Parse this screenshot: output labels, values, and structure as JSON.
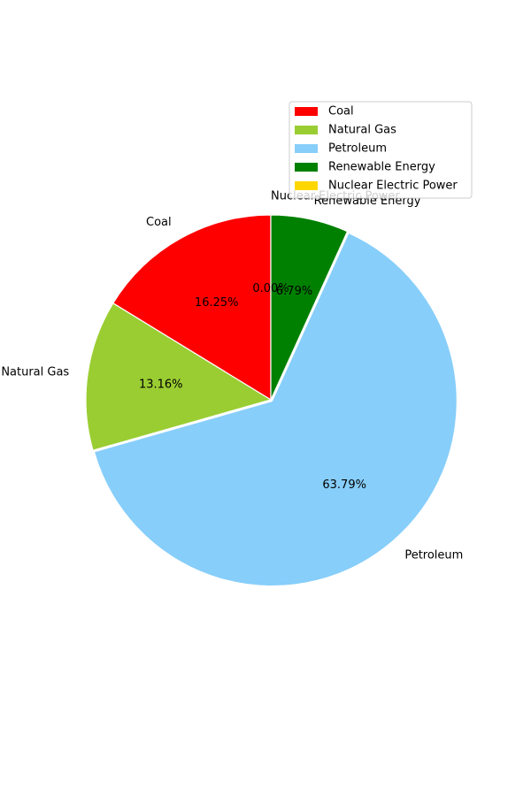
{
  "chart_data": {
    "type": "pie",
    "title": "",
    "legend_position": "top-right",
    "start_angle_deg": 90,
    "direction": "counterclockwise",
    "explode": [
      0,
      0,
      0.01,
      0,
      0
    ],
    "slices": [
      {
        "label": "Coal",
        "value": 16.25,
        "pct_label": "16.25%",
        "color": "#FF0000"
      },
      {
        "label": "Natural Gas",
        "value": 13.16,
        "pct_label": "13.16%",
        "color": "#9ACD32"
      },
      {
        "label": "Petroleum",
        "value": 63.79,
        "pct_label": "63.79%",
        "color": "#87CEFA"
      },
      {
        "label": "Renewable Energy",
        "value": 6.79,
        "pct_label": "6.79%",
        "color": "#008000"
      },
      {
        "label": "Nuclear Electric Power",
        "value": 0.0,
        "pct_label": "0.00%",
        "color": "#FFD700"
      }
    ]
  }
}
